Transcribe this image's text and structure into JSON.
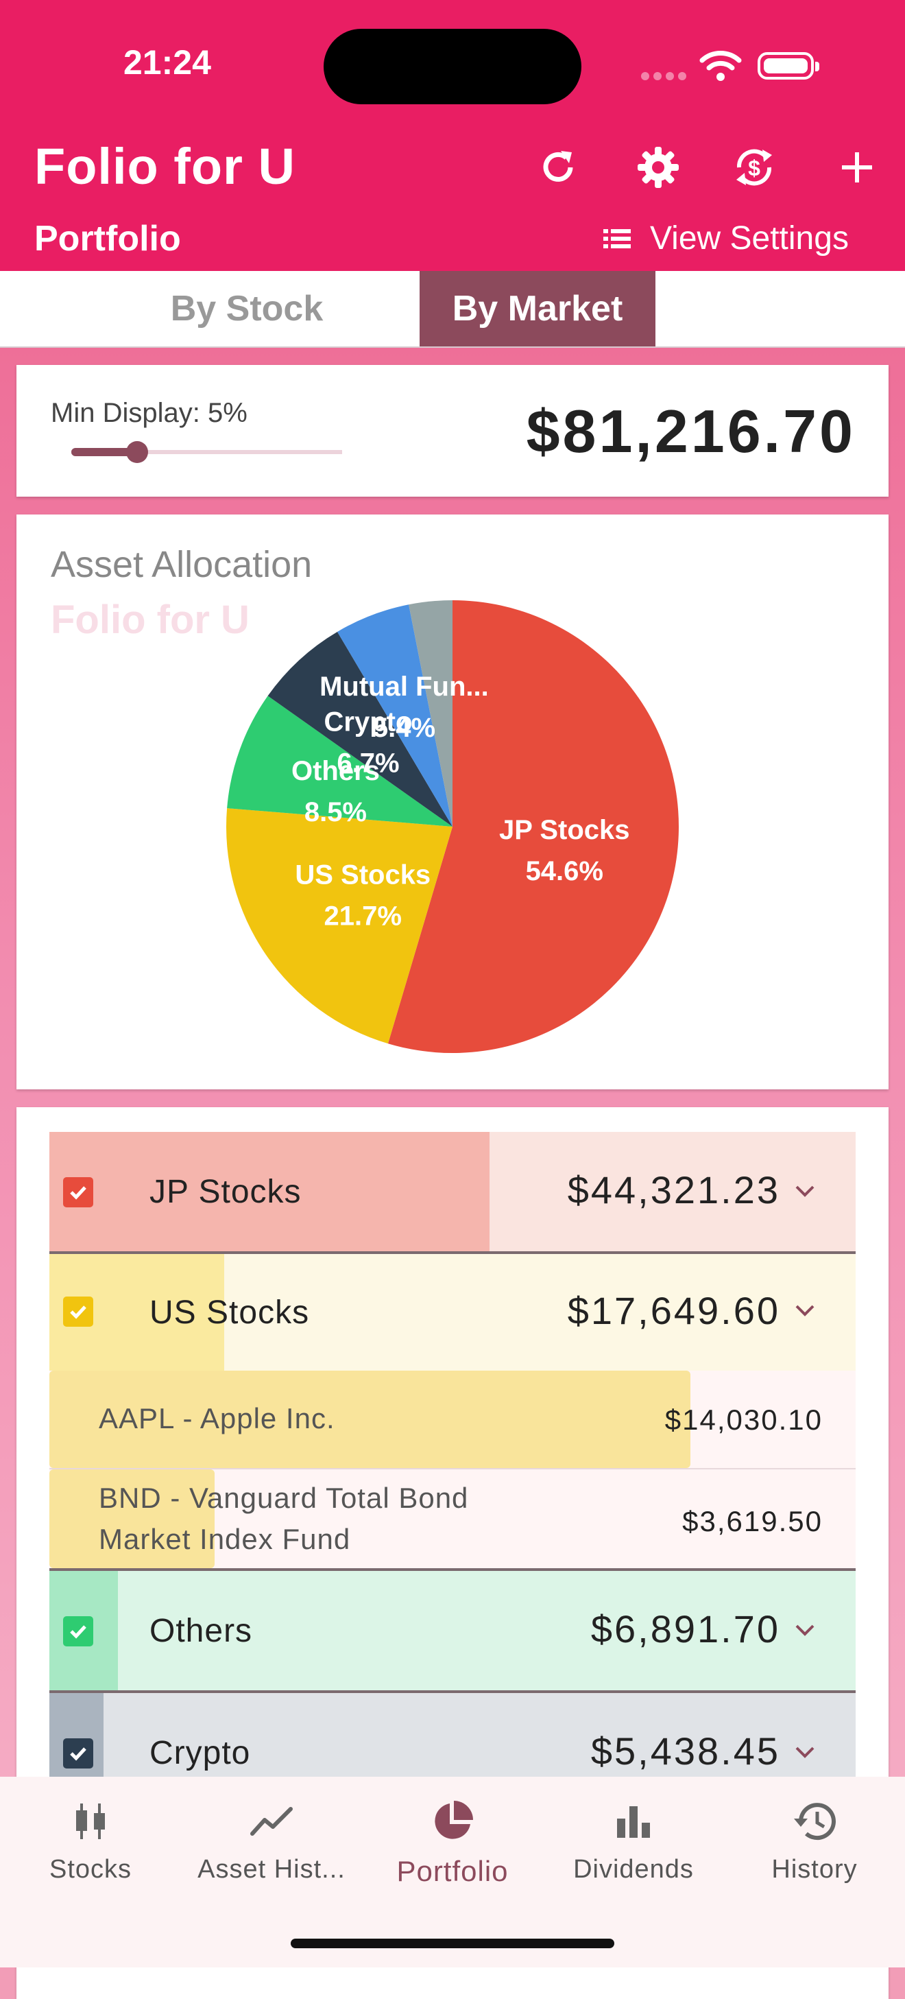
{
  "status_bar": {
    "time": "21:24"
  },
  "header": {
    "title": "Folio for U",
    "subtitle": "Portfolio",
    "view_settings_label": "View Settings",
    "icons": [
      "refresh-icon",
      "gear-icon",
      "currency-sync-icon",
      "plus-icon"
    ]
  },
  "tabs": [
    {
      "label": "By Stock",
      "selected": false
    },
    {
      "label": "By Market",
      "selected": true
    }
  ],
  "summary": {
    "min_display_label": "Min Display:",
    "min_display_value": "5%",
    "min_display_fraction": 0.05,
    "total": "$81,216.70"
  },
  "chart": {
    "title": "Asset Allocation",
    "watermark": "Folio for U"
  },
  "chart_data": {
    "type": "pie",
    "title": "Asset Allocation",
    "slices": [
      {
        "label": "JP Stocks",
        "percent_label": "54.6%",
        "value": 54.6,
        "color": "#e74c3c"
      },
      {
        "label": "US Stocks",
        "percent_label": "21.7%",
        "value": 21.7,
        "color": "#f1c40f"
      },
      {
        "label": "Others",
        "percent_label": "8.5%",
        "value": 8.5,
        "color": "#2ecc71"
      },
      {
        "label": "Crypto",
        "percent_label": "6.7%",
        "value": 6.7,
        "color": "#2c3e50"
      },
      {
        "label": "Mutual Fun...",
        "percent_label": "5.4%",
        "value": 5.4,
        "color": "#4a90e2"
      },
      {
        "label": "",
        "percent_label": "",
        "value": 3.1,
        "color": "#95a5a6"
      }
    ]
  },
  "market_list": [
    {
      "name": "JP Stocks",
      "value": "$44,321.23",
      "fraction": 0.546,
      "checked": true,
      "check_color": "#e74c3c",
      "bar_color": "#f5b5ad",
      "row_bg": "#fae4df"
    },
    {
      "name": "US Stocks",
      "value": "$17,649.60",
      "fraction": 0.217,
      "checked": true,
      "check_color": "#f1c40f",
      "bar_color": "#faea9f",
      "row_bg": "#fdf8e4",
      "holdings": [
        {
          "name": "AAPL - Apple Inc.",
          "value": "$14,030.10",
          "fraction": 0.795
        },
        {
          "name": "BND - Vanguard Total Bond Market Index Fund",
          "value": "$3,619.50",
          "fraction": 0.205
        }
      ]
    },
    {
      "name": "Others",
      "value": "$6,891.70",
      "fraction": 0.085,
      "checked": true,
      "check_color": "#2ecc71",
      "bar_color": "#a7e8c4",
      "row_bg": "#dcf5e7"
    },
    {
      "name": "Crypto",
      "value": "$5,438.45",
      "fraction": 0.067,
      "checked": true,
      "check_color": "#2c3e50",
      "bar_color": "#aab4bf",
      "row_bg": "#e0e3e7"
    }
  ],
  "bottom_nav": [
    {
      "label": "Stocks",
      "icon": "candlestick-icon",
      "active": false
    },
    {
      "label": "Asset Hist...",
      "icon": "trend-line-icon",
      "active": false
    },
    {
      "label": "Portfolio",
      "icon": "pie-chart-icon",
      "active": true
    },
    {
      "label": "Dividends",
      "icon": "bar-chart-icon",
      "active": false
    },
    {
      "label": "History",
      "icon": "history-icon",
      "active": false
    }
  ],
  "colors": {
    "primary": "#e91e63",
    "accent": "#8c4a5c"
  }
}
